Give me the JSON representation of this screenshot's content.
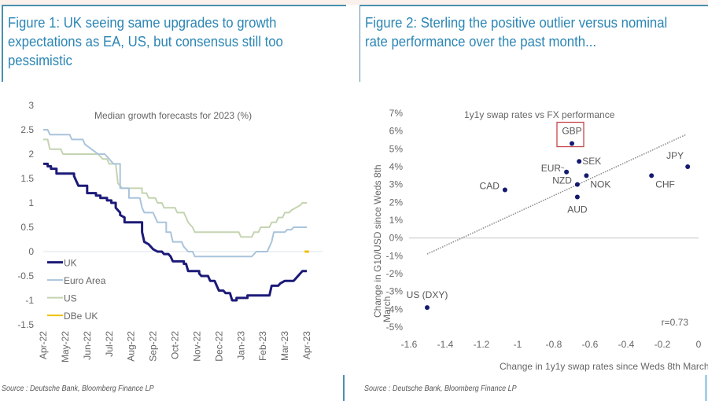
{
  "figures": [
    {
      "title": "Figure 1: UK seeing same upgrades to growth expectations as EA, US, but consensus still too pessimistic",
      "source": "Source : Deutsche Bank, Bloomberg Finance LP"
    },
    {
      "title": "Figure 2: Sterling the positive outlier versus nominal rate performance over the past month...",
      "source": "Source : Deutsche Bank, Bloomberg Finance LP"
    }
  ],
  "colors": {
    "uk": "#1c1a78",
    "euro_area": "#a9c4dc",
    "us": "#c4d4b0",
    "dbe_uk": "#f0c000",
    "scatter_point": "#141a6e",
    "highlight_box": "#c8474a",
    "title_blue": "#2b86b5"
  },
  "chart_data": [
    {
      "type": "line",
      "title": "Median growth forecasts for 2023 (%)",
      "xlabel": "",
      "ylabel": "",
      "ylim": [
        -1.5,
        3
      ],
      "yticks": [
        "3",
        "2.5",
        "2",
        "1.5",
        "1",
        "0.5",
        "0",
        "-0.5",
        "-1",
        "-1.5"
      ],
      "ytick_values": [
        3,
        2.5,
        2,
        1.5,
        1,
        0.5,
        0,
        -0.5,
        -1,
        -1.5
      ],
      "xticks": [
        "Apr-22",
        "May-22",
        "Jun-22",
        "Jul-22",
        "Aug-22",
        "Sep-22",
        "Oct-22",
        "Nov-22",
        "Dec-22",
        "Jan-23",
        "Feb-23",
        "Mar-23",
        "Apr-23"
      ],
      "x_units": "months since Apr-22",
      "legend": [
        "UK",
        "Euro Area",
        "US",
        "DBe UK"
      ],
      "legend_position": "bottom-left",
      "grid": false,
      "series": [
        {
          "name": "UK",
          "points": [
            [
              0,
              1.8
            ],
            [
              0.2,
              1.8
            ],
            [
              0.2,
              1.75
            ],
            [
              0.35,
              1.75
            ],
            [
              0.35,
              1.7
            ],
            [
              0.6,
              1.7
            ],
            [
              0.6,
              1.6
            ],
            [
              1.4,
              1.6
            ],
            [
              1.4,
              1.55
            ],
            [
              1.5,
              1.45
            ],
            [
              1.6,
              1.35
            ],
            [
              2.0,
              1.35
            ],
            [
              2.0,
              1.2
            ],
            [
              2.4,
              1.2
            ],
            [
              2.4,
              1.15
            ],
            [
              2.6,
              1.15
            ],
            [
              2.6,
              1.1
            ],
            [
              2.9,
              1.1
            ],
            [
              2.9,
              1.05
            ],
            [
              3.1,
              1.05
            ],
            [
              3.1,
              1.0
            ],
            [
              3.3,
              1.0
            ],
            [
              3.3,
              0.9
            ],
            [
              3.5,
              0.8
            ],
            [
              3.5,
              0.75
            ],
            [
              3.7,
              0.7
            ],
            [
              3.7,
              0.6
            ],
            [
              4.5,
              0.6
            ],
            [
              4.5,
              0.4
            ],
            [
              4.6,
              0.2
            ],
            [
              4.8,
              0.15
            ],
            [
              5.0,
              0.05
            ],
            [
              5.2,
              0.0
            ],
            [
              5.4,
              0.0
            ],
            [
              5.5,
              -0.05
            ],
            [
              5.7,
              -0.05
            ],
            [
              5.8,
              -0.1
            ],
            [
              5.9,
              -0.2
            ],
            [
              6.4,
              -0.2
            ],
            [
              6.4,
              -0.25
            ],
            [
              6.5,
              -0.25
            ],
            [
              6.6,
              -0.4
            ],
            [
              7.1,
              -0.4
            ],
            [
              7.1,
              -0.45
            ],
            [
              7.2,
              -0.5
            ],
            [
              7.5,
              -0.5
            ],
            [
              7.6,
              -0.6
            ],
            [
              7.8,
              -0.6
            ],
            [
              7.9,
              -0.7
            ],
            [
              8.0,
              -0.8
            ],
            [
              8.2,
              -0.8
            ],
            [
              8.3,
              -0.85
            ],
            [
              8.5,
              -0.85
            ],
            [
              8.6,
              -1.0
            ],
            [
              8.8,
              -1.0
            ],
            [
              8.8,
              -0.95
            ],
            [
              9.3,
              -0.95
            ],
            [
              9.3,
              -0.9
            ],
            [
              10.3,
              -0.9
            ],
            [
              10.4,
              -0.7
            ],
            [
              10.7,
              -0.7
            ],
            [
              10.8,
              -0.65
            ],
            [
              11.0,
              -0.6
            ],
            [
              11.4,
              -0.6
            ],
            [
              11.5,
              -0.55
            ],
            [
              11.6,
              -0.5
            ],
            [
              11.7,
              -0.45
            ],
            [
              11.8,
              -0.4
            ],
            [
              12.0,
              -0.4
            ]
          ]
        },
        {
          "name": "Euro Area",
          "points": [
            [
              0,
              2.5
            ],
            [
              0.2,
              2.5
            ],
            [
              0.3,
              2.4
            ],
            [
              1.2,
              2.4
            ],
            [
              1.3,
              2.3
            ],
            [
              1.8,
              2.3
            ],
            [
              1.9,
              2.2
            ],
            [
              2.2,
              2.1
            ],
            [
              2.5,
              2.0
            ],
            [
              2.8,
              2.0
            ],
            [
              3.0,
              1.9
            ],
            [
              3.2,
              1.8
            ],
            [
              3.5,
              1.8
            ],
            [
              3.5,
              1.3
            ],
            [
              3.9,
              1.3
            ],
            [
              3.9,
              1.1
            ],
            [
              4.4,
              1.1
            ],
            [
              4.5,
              0.9
            ],
            [
              4.6,
              0.8
            ],
            [
              5.0,
              0.8
            ],
            [
              5.2,
              0.6
            ],
            [
              5.6,
              0.6
            ],
            [
              5.6,
              0.4
            ],
            [
              5.8,
              0.4
            ],
            [
              5.9,
              0.2
            ],
            [
              6.3,
              0.2
            ],
            [
              6.4,
              0.1
            ],
            [
              6.6,
              0.0
            ],
            [
              6.8,
              0.0
            ],
            [
              6.9,
              -0.1
            ],
            [
              9.5,
              -0.1
            ],
            [
              9.6,
              -0.05
            ],
            [
              9.7,
              0.0
            ],
            [
              10.2,
              0.0
            ],
            [
              10.3,
              0.1
            ],
            [
              10.4,
              0.2
            ],
            [
              10.5,
              0.4
            ],
            [
              11.0,
              0.4
            ],
            [
              11.1,
              0.45
            ],
            [
              11.3,
              0.45
            ],
            [
              11.4,
              0.5
            ],
            [
              12.0,
              0.5
            ]
          ]
        },
        {
          "name": "US",
          "points": [
            [
              0,
              2.3
            ],
            [
              0.2,
              2.3
            ],
            [
              0.3,
              2.1
            ],
            [
              0.8,
              2.1
            ],
            [
              0.9,
              2.0
            ],
            [
              2.5,
              2.0
            ],
            [
              2.7,
              1.9
            ],
            [
              2.9,
              1.9
            ],
            [
              3.0,
              1.8
            ],
            [
              3.3,
              1.8
            ],
            [
              3.4,
              1.4
            ],
            [
              3.6,
              1.3
            ],
            [
              4.5,
              1.3
            ],
            [
              4.5,
              1.2
            ],
            [
              4.7,
              1.2
            ],
            [
              4.8,
              1.1
            ],
            [
              5.1,
              1.1
            ],
            [
              5.2,
              1.0
            ],
            [
              5.4,
              1.0
            ],
            [
              5.5,
              0.9
            ],
            [
              6.0,
              0.9
            ],
            [
              6.1,
              0.8
            ],
            [
              6.4,
              0.8
            ],
            [
              6.5,
              0.7
            ],
            [
              6.6,
              0.6
            ],
            [
              6.8,
              0.5
            ],
            [
              6.9,
              0.4
            ],
            [
              8.9,
              0.4
            ],
            [
              9.0,
              0.3
            ],
            [
              9.5,
              0.3
            ],
            [
              9.6,
              0.4
            ],
            [
              9.8,
              0.4
            ],
            [
              9.9,
              0.5
            ],
            [
              10.3,
              0.5
            ],
            [
              10.4,
              0.6
            ],
            [
              10.6,
              0.6
            ],
            [
              10.7,
              0.7
            ],
            [
              10.9,
              0.7
            ],
            [
              11.0,
              0.8
            ],
            [
              11.2,
              0.8
            ],
            [
              11.3,
              0.85
            ],
            [
              11.5,
              0.9
            ],
            [
              11.7,
              0.95
            ],
            [
              11.8,
              1.0
            ],
            [
              12.0,
              1.0
            ]
          ]
        },
        {
          "name": "DBe UK",
          "points": [
            [
              11.9,
              0.0
            ],
            [
              12.1,
              0.0
            ]
          ]
        }
      ]
    },
    {
      "type": "scatter",
      "title": "1y1y swap rates vs FX performance",
      "xlabel": "Change in 1y1y swap rates since Weds 8th March (%)",
      "ylabel": "Change in G10/USD since Weds 8th March",
      "xlim": [
        -1.6,
        0
      ],
      "ylim": [
        -5,
        7
      ],
      "xticks": [
        "-1.6",
        "-1.4",
        "-1.2",
        "-1",
        "-0.8",
        "-0.6",
        "-0.4",
        "-0.2",
        "0"
      ],
      "xtick_values": [
        -1.6,
        -1.4,
        -1.2,
        -1,
        -0.8,
        -0.6,
        -0.4,
        -0.2,
        0
      ],
      "yticks": [
        "7%",
        "6%",
        "5%",
        "4%",
        "3%",
        "2%",
        "1%",
        "0%",
        "-1%",
        "-2%",
        "-3%",
        "-4%",
        "-5%"
      ],
      "ytick_values": [
        7,
        6,
        5,
        4,
        3,
        2,
        1,
        0,
        -1,
        -2,
        -3,
        -4,
        -5
      ],
      "annotation": "r=0.73",
      "highlight": "GBP",
      "trendline": {
        "x": [
          -1.5,
          -0.07
        ],
        "y": [
          -0.9,
          5.8
        ],
        "style": "dotted"
      },
      "grid": false,
      "points": [
        {
          "label": "GBP",
          "x": -0.7,
          "y": 5.3,
          "label_pos": "top"
        },
        {
          "label": "SEK",
          "x": -0.66,
          "y": 4.3,
          "label_pos": "right"
        },
        {
          "label": "EUR",
          "x": -0.73,
          "y": 3.7,
          "label_pos": "left"
        },
        {
          "label": "NOK",
          "x": -0.62,
          "y": 3.5,
          "label_pos": "bottom-right"
        },
        {
          "label": "NZD",
          "x": -0.67,
          "y": 3.0,
          "label_pos": "left"
        },
        {
          "label": "AUD",
          "x": -0.67,
          "y": 2.3,
          "label_pos": "bottom"
        },
        {
          "label": "CAD",
          "x": -1.07,
          "y": 2.7,
          "label_pos": "left"
        },
        {
          "label": "CHF",
          "x": -0.26,
          "y": 3.5,
          "label_pos": "bottom-right"
        },
        {
          "label": "JPY",
          "x": -0.06,
          "y": 4.0,
          "label_pos": "top-left"
        },
        {
          "label": "US (DXY)",
          "x": -1.5,
          "y": -3.9,
          "label_pos": "top"
        }
      ]
    }
  ]
}
